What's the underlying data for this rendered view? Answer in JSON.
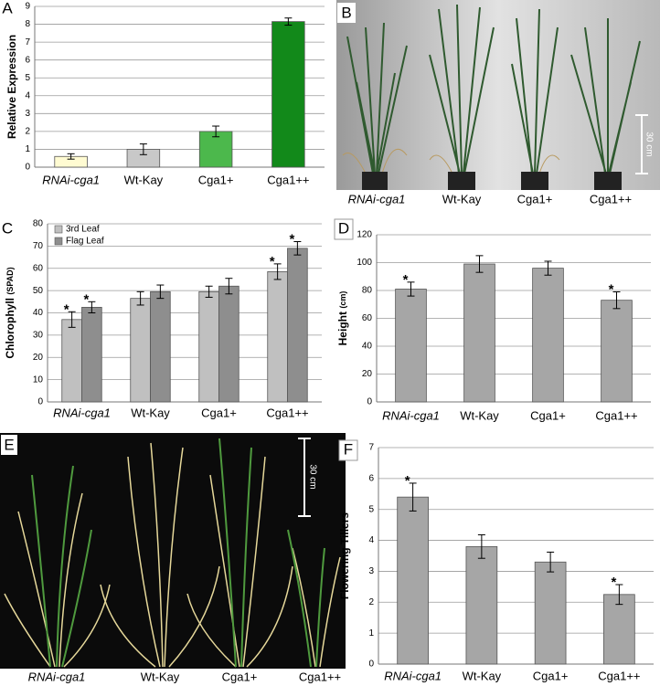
{
  "chart_data": [
    {
      "type": "bar",
      "panel_label": "A",
      "ylabel": "Relative Expression",
      "categories": [
        "RNAi-cga1",
        "Wt-Kay",
        "Cga1+",
        "Cga1++"
      ],
      "values": [
        0.6,
        1.0,
        2.0,
        8.15
      ],
      "errors": [
        0.15,
        0.3,
        0.3,
        0.2
      ],
      "colors": [
        "#fffbd2",
        "#c8c8c8",
        "#4cb84c",
        "#12891a"
      ],
      "ylim": [
        0,
        9
      ],
      "yticks": [
        0,
        1,
        2,
        3,
        4,
        5,
        6,
        7,
        8,
        9
      ],
      "grid": true
    },
    {
      "type": "bar",
      "panel_label": "C",
      "ylabel": "Chlorophyll",
      "ylabel_unit": "(SPAD)",
      "categories": [
        "RNAi-cga1",
        "Wt-Kay",
        "Cga1+",
        "Cga1++"
      ],
      "series": [
        {
          "name": "3rd Leaf",
          "color": "#c0c0c0",
          "values": [
            37,
            46.5,
            49.5,
            58.5
          ],
          "errors": [
            3.5,
            3,
            2.5,
            3.5
          ],
          "significant": [
            true,
            false,
            false,
            true
          ]
        },
        {
          "name": "Flag Leaf",
          "color": "#8e8e8e",
          "values": [
            42.5,
            49.5,
            52,
            69
          ],
          "errors": [
            2.5,
            3,
            3.5,
            3
          ],
          "significant": [
            true,
            false,
            false,
            true
          ]
        }
      ],
      "significance_marker": "*",
      "legend": "upper left",
      "ylim": [
        0,
        80
      ],
      "yticks": [
        0,
        10,
        20,
        30,
        40,
        50,
        60,
        70,
        80
      ],
      "grid": true
    },
    {
      "type": "bar",
      "panel_label": "D",
      "ylabel": "Height",
      "ylabel_unit": "(cm)",
      "categories": [
        "RNAi-cga1",
        "Wt-Kay",
        "Cga1+",
        "Cga1++"
      ],
      "values": [
        81,
        99,
        96,
        73
      ],
      "errors": [
        5,
        6,
        5,
        6
      ],
      "significant": [
        true,
        false,
        false,
        true
      ],
      "significance_marker": "*",
      "color": "#a6a6a6",
      "ylim": [
        0,
        120
      ],
      "yticks": [
        0,
        20,
        40,
        60,
        80,
        100,
        120
      ],
      "grid": true
    },
    {
      "type": "bar",
      "panel_label": "F",
      "ylabel": "Flowering Tillers",
      "categories": [
        "RNAi-cga1",
        "Wt-Kay",
        "Cga1+",
        "Cga1++"
      ],
      "values": [
        5.4,
        3.8,
        3.3,
        2.25
      ],
      "errors": [
        0.45,
        0.38,
        0.32,
        0.32
      ],
      "significant": [
        true,
        false,
        false,
        true
      ],
      "significance_marker": "*",
      "color": "#a6a6a6",
      "ylim": [
        0,
        7
      ],
      "yticks": [
        0,
        1,
        2,
        3,
        4,
        5,
        6,
        7
      ],
      "grid": true
    }
  ],
  "photo_panels": [
    {
      "panel_label": "B",
      "labels": [
        "RNAi-cga1",
        "Wt-Kay",
        "Cga1+",
        "Cga1++"
      ],
      "scale_label": "30 cm"
    },
    {
      "panel_label": "E",
      "labels": [
        "RNAi-cga1",
        "Wt-Kay",
        "Cga1+",
        "Cga1++"
      ],
      "scale_label": "30 cm"
    }
  ]
}
